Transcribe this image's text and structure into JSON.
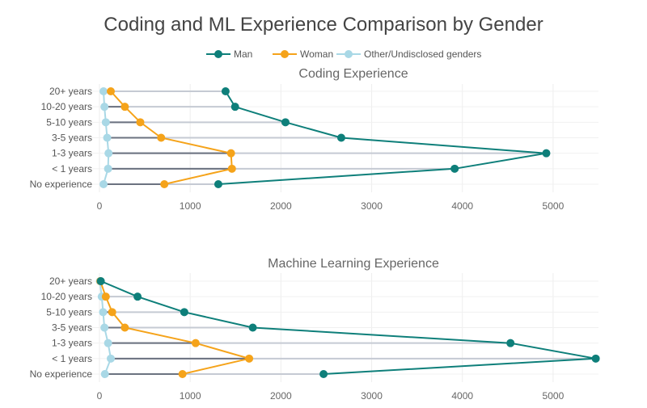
{
  "title": "Coding and ML Experience Comparison by Gender",
  "legend": {
    "placement": "top-center",
    "items": [
      {
        "name": "Man",
        "color": "#0e7f7a"
      },
      {
        "name": "Woman",
        "color": "#f5a31a"
      },
      {
        "name": "Other/Undisclosed genders",
        "color": "#a9d8e6"
      }
    ]
  },
  "connector_color": "#c5cad3",
  "chart_data": [
    {
      "type": "line",
      "title": "Coding Experience",
      "orientation": "horizontal",
      "categories": [
        "20+ years",
        "10-20 years",
        "5-10 years",
        "3-5 years",
        "1-3 years",
        "< 1 years",
        "No experience"
      ],
      "xlim": [
        -80,
        5500
      ],
      "xticks": [
        0,
        1000,
        2000,
        3000,
        4000,
        5000
      ],
      "grid": true,
      "series": [
        {
          "name": "Man",
          "color": "#0e7f7a",
          "values": [
            1390,
            1495,
            2050,
            2665,
            4925,
            3915,
            1310
          ]
        },
        {
          "name": "Woman",
          "color": "#f5a31a",
          "values": [
            125,
            280,
            450,
            680,
            1450,
            1460,
            715
          ]
        },
        {
          "name": "Other/Undisclosed genders",
          "color": "#a9d8e6",
          "values": [
            45,
            55,
            70,
            85,
            100,
            95,
            45
          ]
        }
      ]
    },
    {
      "type": "line",
      "title": "Machine Learning Experience",
      "orientation": "horizontal",
      "categories": [
        "20+ years",
        "10-20 years",
        "5-10 years",
        "3-5 years",
        "1-3 years",
        "< 1 years",
        "No experience"
      ],
      "xlim": [
        -80,
        5500
      ],
      "xticks": [
        0,
        1000,
        2000,
        3000,
        4000,
        5000
      ],
      "grid": true,
      "series": [
        {
          "name": "Man",
          "color": "#0e7f7a",
          "values": [
            15,
            420,
            935,
            1690,
            4530,
            5470,
            2470
          ]
        },
        {
          "name": "Woman",
          "color": "#f5a31a",
          "values": [
            10,
            70,
            140,
            280,
            1060,
            1650,
            915
          ]
        },
        {
          "name": "Other/Undisclosed genders",
          "color": "#a9d8e6",
          "values": [
            5,
            25,
            40,
            55,
            95,
            125,
            60
          ]
        }
      ]
    }
  ]
}
